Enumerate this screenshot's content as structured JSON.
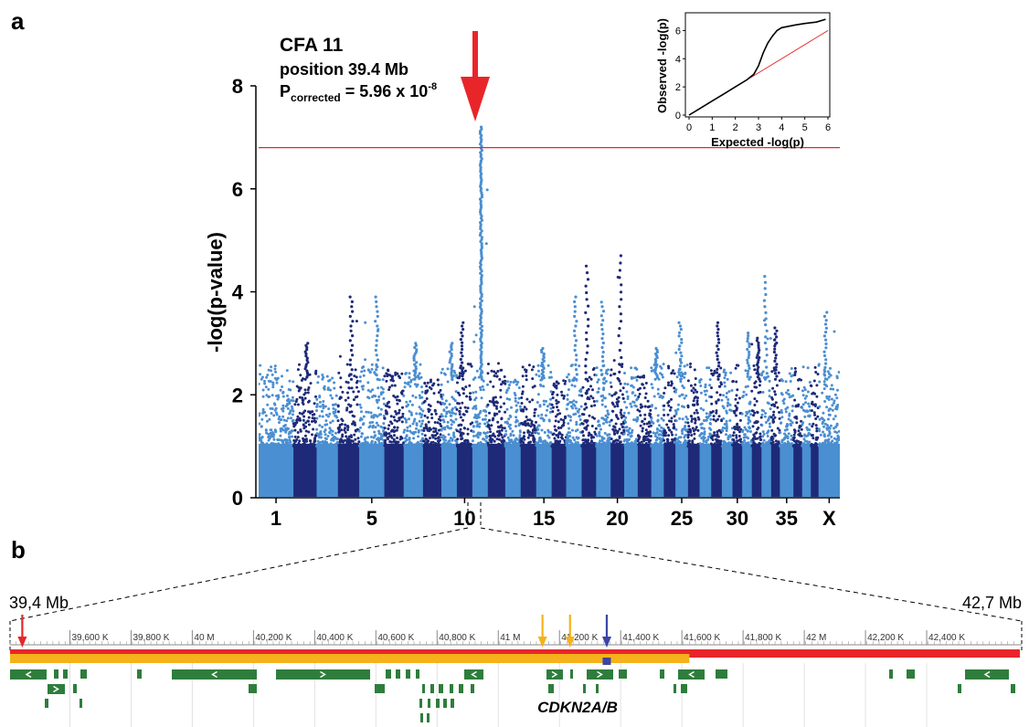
{
  "panel_a": {
    "label": "a",
    "annotation": {
      "line1": "CFA 11",
      "line2": "position 39.4 Mb",
      "line3_prefix": "P",
      "line3_subscript": "corrected",
      "line3_value": " = 5.96 x 10",
      "line3_exponent": "-8"
    }
  },
  "panel_b": {
    "label": "b",
    "left_label": "39,4 Mb",
    "right_label": "42,7 Mb",
    "gene_label": "CDKN2A/B",
    "ruler_ticks": [
      "39,600 K",
      "39,800 K",
      "40 M",
      "40,200 K",
      "40,400 K",
      "40,600 K",
      "40,800 K",
      "41 M",
      "41,200 K",
      "41,400 K",
      "41,600 K",
      "41,800 K",
      "42 M",
      "42,200 K",
      "42,400 K"
    ],
    "region_start_mb": 39.4,
    "region_end_mb": 42.7,
    "orange_bar_end_mb": 41.62,
    "red_arrow_mb": 39.44,
    "orange_arrows_mb": [
      41.14,
      41.23
    ],
    "blue_arrow_mb": 41.35,
    "blue_box_mb": 41.35,
    "colors": {
      "red": "#e8262a",
      "orange": "#f5b21c",
      "blue": "#3a45a6",
      "gene_green": "#2e7d3c"
    }
  },
  "chart_data": [
    {
      "type": "scatter",
      "subtype": "manhattan",
      "title": "",
      "xlabel": "",
      "ylabel": "-log(p-value)",
      "ylim": [
        0,
        8.4
      ],
      "yticks": [
        0,
        2,
        4,
        6,
        8
      ],
      "xtick_labels": [
        "1",
        "5",
        "10",
        "15",
        "20",
        "25",
        "30",
        "35",
        "X"
      ],
      "chromosomes": [
        "1",
        "2",
        "3",
        "4",
        "5",
        "6",
        "7",
        "8",
        "9",
        "10",
        "11",
        "12",
        "13",
        "14",
        "15",
        "16",
        "17",
        "18",
        "19",
        "20",
        "21",
        "22",
        "23",
        "24",
        "25",
        "26",
        "27",
        "28",
        "29",
        "30",
        "31",
        "32",
        "33",
        "34",
        "35",
        "36",
        "37",
        "38",
        "X"
      ],
      "chromosome_max_neglogp": [
        2.8,
        3.0,
        2.4,
        3.9,
        3.9,
        2.5,
        3.0,
        2.3,
        3.0,
        3.4,
        7.2,
        2.7,
        2.3,
        2.6,
        2.9,
        2.3,
        3.9,
        4.5,
        3.8,
        4.7,
        2.6,
        2.4,
        2.9,
        2.8,
        3.4,
        2.8,
        2.8,
        3.4,
        2.6,
        2.8,
        3.2,
        3.1,
        4.3,
        3.3,
        2.8,
        2.6,
        2.7,
        2.6,
        3.6
      ],
      "significance_threshold": 6.8,
      "colors": {
        "odd": "#4a8fd1",
        "even": "#1e2a78",
        "threshold": "#e8262a",
        "arrow": "#e8262a"
      }
    },
    {
      "type": "line",
      "subtype": "qq-plot",
      "title": "",
      "xlabel": "Expected -log(p)",
      "ylabel": "Observed -log(p)",
      "xlim": [
        0,
        6
      ],
      "ylim": [
        0,
        7
      ],
      "xticks": [
        0,
        1,
        2,
        3,
        4,
        5,
        6
      ],
      "yticks": [
        0,
        2,
        4,
        6
      ],
      "series": [
        {
          "x": [
            0,
            0.5,
            1,
            1.5,
            2,
            2.5,
            2.8,
            3.0,
            3.2,
            3.4,
            3.6,
            3.8,
            4.0,
            4.3,
            4.6,
            5.0,
            5.5,
            5.9
          ],
          "y": [
            0,
            0.5,
            1.0,
            1.5,
            2.0,
            2.5,
            2.9,
            3.5,
            4.4,
            5.1,
            5.6,
            6.0,
            6.2,
            6.3,
            6.4,
            6.5,
            6.6,
            6.8
          ]
        }
      ],
      "expected_line": {
        "x": [
          0,
          6
        ],
        "y": [
          0,
          6
        ]
      },
      "colors": {
        "observed": "#000000",
        "expected": "#e8262a"
      }
    }
  ]
}
